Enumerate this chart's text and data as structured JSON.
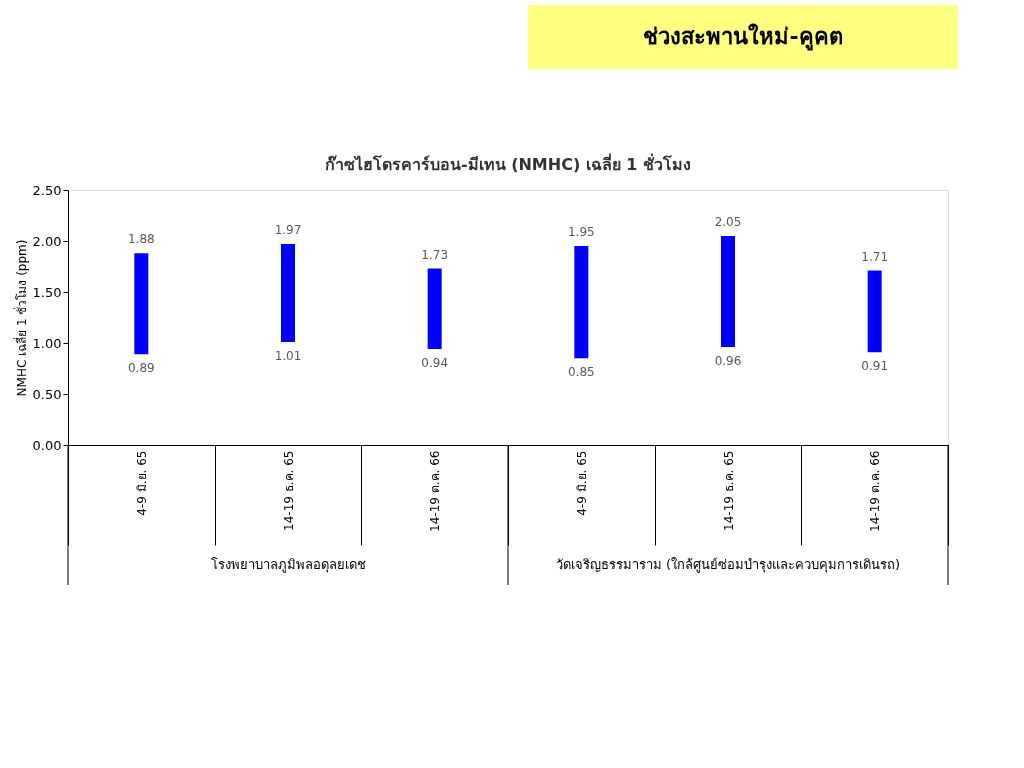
{
  "chart_data": {
    "type": "bar",
    "title": "ช่วงสะพานใหม่-คูคต",
    "subtitle": "ก๊าซไฮโดรคาร์บอน-มีเทน (NMHC) เฉลี่ย 1 ชั่วโมง",
    "ylabel": "NMHC เฉลี่ย 1 ชั่วโมง (ppm)",
    "categories": [
      "4-9 มิ.ย. 65",
      "14-19 ธ.ค. 65",
      "14-19 ต.ค. 66",
      "4-9 มิ.ย. 65",
      "14-19 ธ.ค. 65",
      "14-19 ต.ค. 66"
    ],
    "base": [
      0.89,
      1.01,
      0.94,
      0.85,
      0.96,
      0.91
    ],
    "values": [
      0.99,
      0.96,
      0.79,
      1.1,
      1.09,
      0.8
    ],
    "value_labels": [
      "1.88",
      "1.97",
      "1.73",
      "1.95",
      "2.05",
      "1.71"
    ],
    "color": "#0000ff",
    "ylim": [
      0,
      2.5
    ],
    "yticks": [
      {
        "value": 0,
        "label": "0.00"
      },
      {
        "value": 0.5,
        "label": "0.50"
      },
      {
        "value": 1,
        "label": "1.00"
      },
      {
        "value": 1.5,
        "label": "1.50"
      },
      {
        "value": 2,
        "label": "2.00"
      },
      {
        "value": 2.5,
        "label": "2.50"
      }
    ],
    "annotations": [
      "0.89",
      "1.01",
      "0.94",
      "0.85",
      "0.96",
      "0.91",
      "โรงพยาบาลภูมิพลอดุลยเดช",
      "วัดเจริญธรรมาราม (ใกล้ศูนย์ซ่อมบำรุงและควบคุมการเดินรถ)"
    ],
    "grid": false
  }
}
